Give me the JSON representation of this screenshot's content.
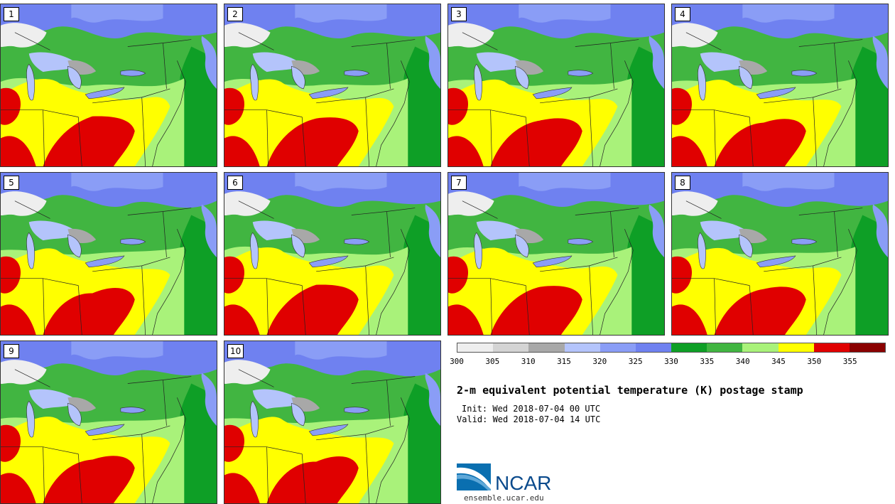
{
  "members": [
    {
      "label": "1"
    },
    {
      "label": "2"
    },
    {
      "label": "3"
    },
    {
      "label": "4"
    },
    {
      "label": "5"
    },
    {
      "label": "6"
    },
    {
      "label": "7"
    },
    {
      "label": "8"
    },
    {
      "label": "9"
    },
    {
      "label": "10"
    }
  ],
  "colorbar": {
    "ticks": [
      "300",
      "305",
      "310",
      "315",
      "320",
      "325",
      "330",
      "335",
      "340",
      "345",
      "350",
      "355"
    ],
    "colors": [
      "#eeeeee",
      "#d4d4d4",
      "#a8a8a8",
      "#b4c4fb",
      "#8a9df6",
      "#6f81f0",
      "#0e9f26",
      "#41b541",
      "#a9f27a",
      "#ffff00",
      "#e00000",
      "#8a0000"
    ]
  },
  "title": "2-m equivalent potential temperature (K) postage stamp",
  "init": "Init: Wed 2018-07-04 00 UTC",
  "valid": "Valid: Wed 2018-07-04 14 UTC",
  "logo": {
    "text": "NCAR"
  },
  "site": "ensemble.ucar.edu"
}
